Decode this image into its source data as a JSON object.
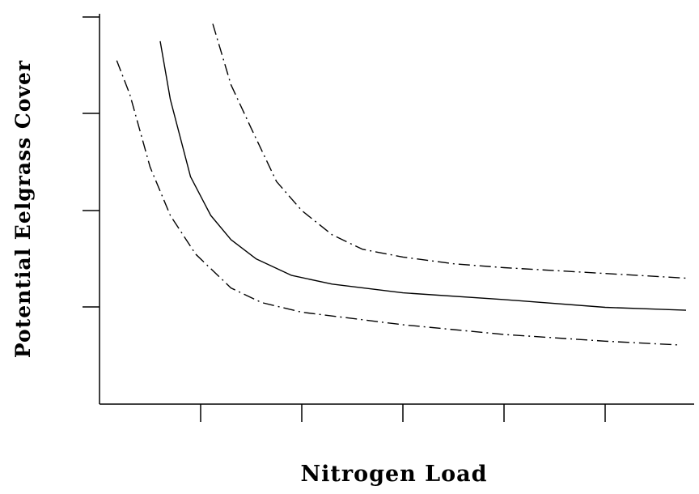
{
  "chart_data": {
    "type": "line",
    "title": "",
    "xlabel": "Nitrogen Load",
    "ylabel": "Potential Eelgrass Cover",
    "xlim": [
      0,
      6
    ],
    "ylim": [
      0,
      4
    ],
    "x_ticks": [
      1,
      2,
      3,
      4,
      5
    ],
    "y_ticks": [
      1,
      2,
      3,
      4
    ],
    "tick_labels_shown": false,
    "grid": false,
    "legend": "none",
    "series": [
      {
        "style": "dashed",
        "x": [
          0.17,
          0.3,
          0.5,
          0.7,
          0.95,
          1.3,
          1.6,
          2.0,
          3.0,
          4.0,
          5.0,
          5.75
        ],
        "y": [
          3.55,
          3.2,
          2.45,
          1.95,
          1.55,
          1.2,
          1.05,
          0.95,
          0.82,
          0.72,
          0.65,
          0.61
        ]
      },
      {
        "style": "solid",
        "x": [
          0.6,
          0.7,
          0.9,
          1.1,
          1.3,
          1.55,
          1.9,
          2.3,
          3.0,
          4.0,
          5.0,
          5.8
        ],
        "y": [
          3.75,
          3.15,
          2.35,
          1.95,
          1.7,
          1.5,
          1.33,
          1.24,
          1.15,
          1.08,
          1.0,
          0.97
        ]
      },
      {
        "style": "dashed",
        "x": [
          1.12,
          1.3,
          1.5,
          1.75,
          2.0,
          2.3,
          2.6,
          3.0,
          3.5,
          4.0,
          5.0,
          5.82
        ],
        "y": [
          3.93,
          3.3,
          2.85,
          2.3,
          2.0,
          1.75,
          1.6,
          1.52,
          1.45,
          1.41,
          1.35,
          1.3
        ]
      }
    ]
  }
}
